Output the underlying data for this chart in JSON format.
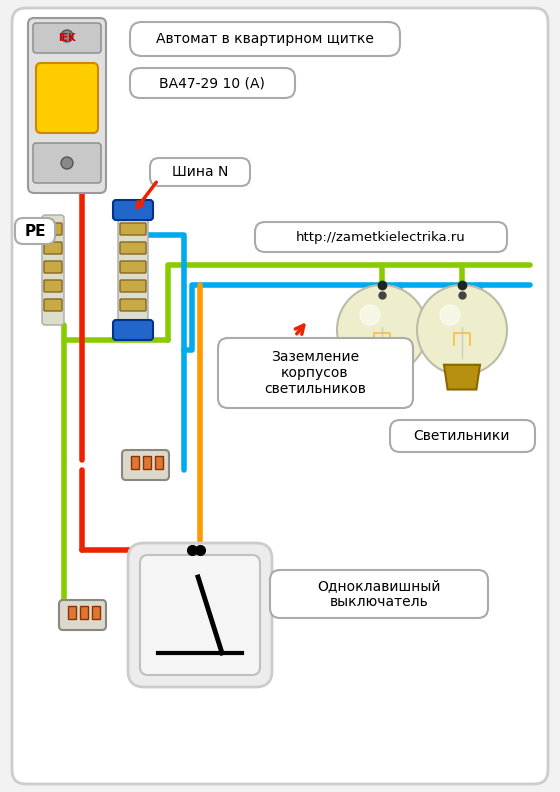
{
  "bg_color": "#f2f2f2",
  "label_automat": "Автомат в квартирном щитке",
  "label_va": "ВА47-29 10 (А)",
  "label_shina": "Шина N",
  "label_pe": "PE",
  "label_url": "http://zametkielectrika.ru",
  "label_zazemlenie": "Заземление\nкорпусов\nсветильников",
  "label_svetilniki": "Светильники",
  "label_vykluchatel": "Одноклавишный\nвыключатель",
  "wire_blue": "#00aaee",
  "wire_red": "#ee2200",
  "wire_green": "#88cc00",
  "wire_orange": "#ff9900",
  "wire_lw": 4.0,
  "fig_width": 5.6,
  "fig_height": 7.92
}
